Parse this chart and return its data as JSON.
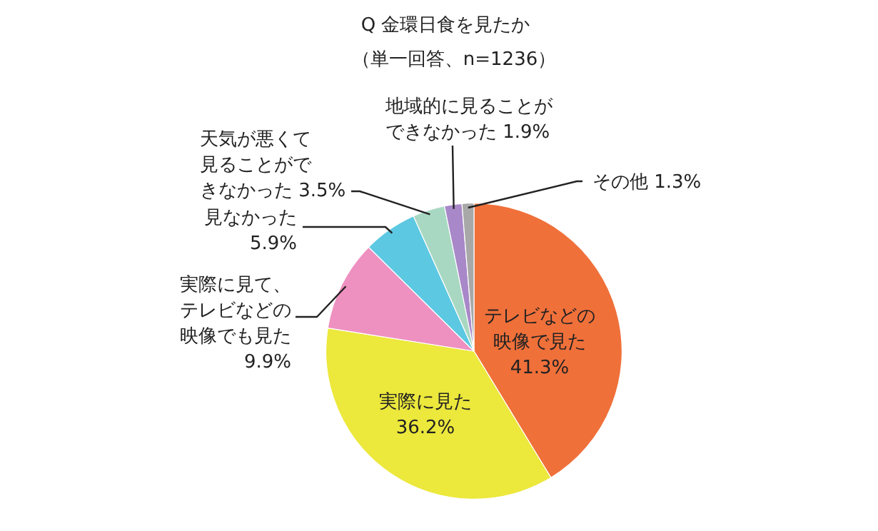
{
  "chart_data": {
    "type": "pie",
    "title": "Q 金環日食を見たか",
    "subtitle": "（単一回答、n=1236）",
    "categories": [
      "テレビなどの映像で見た",
      "実際に見た",
      "実際に見て、テレビなどの映像でも見た",
      "見なかった",
      "天気が悪くて見ることができなかった",
      "地域的に見ることができなかった",
      "その他"
    ],
    "values": [
      41.3,
      36.2,
      9.9,
      5.9,
      3.5,
      1.9,
      1.3
    ],
    "value_labels": [
      "41.3%",
      "36.2%",
      "9.9%",
      "5.9%",
      "3.5%",
      "1.9%",
      "1.3%"
    ],
    "colors": [
      "#f0703a",
      "#ece83c",
      "#ee90c0",
      "#5cc8e2",
      "#a8d8c2",
      "#a888c8",
      "#a8a8a8"
    ],
    "legend": false
  }
}
